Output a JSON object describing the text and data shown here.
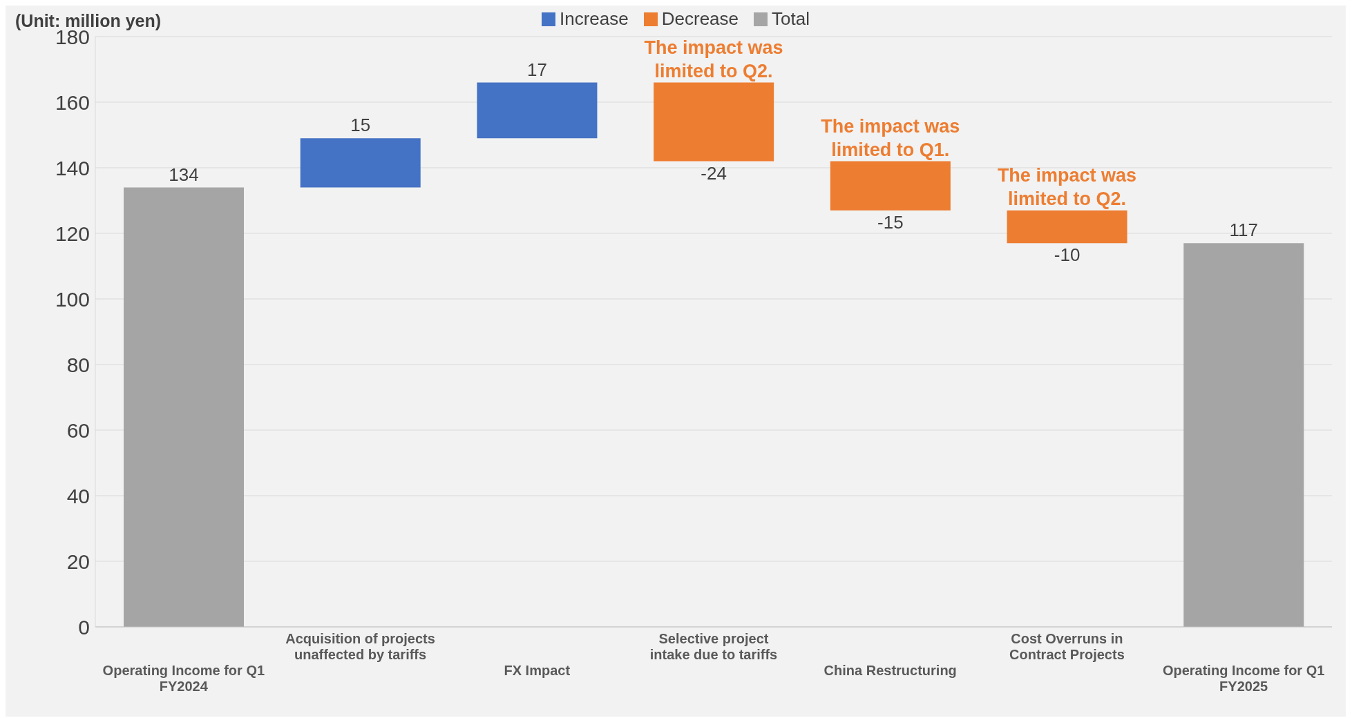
{
  "chart_data": {
    "type": "bar",
    "ylabel": "(Unit: million yen)",
    "categories": [
      "Operating Income for Q1 FY2024",
      "Acquisition of projects unaffected by tariffs",
      "FX Impact",
      "Selective project intake due to tariffs",
      "China Restructuring",
      "Cost Overruns in Contract Projects",
      "Operating Income for Q1 FY2025"
    ],
    "series": [
      {
        "name": "Increase",
        "color": "#4472c4",
        "values": [
          null,
          15,
          17,
          null,
          null,
          null,
          null
        ],
        "base": [
          null,
          134,
          149,
          null,
          null,
          null,
          null
        ]
      },
      {
        "name": "Decrease",
        "color": "#ed7d31",
        "values": [
          null,
          null,
          null,
          -24,
          -15,
          -10,
          null
        ],
        "base": [
          null,
          null,
          null,
          166,
          142,
          127,
          null
        ]
      },
      {
        "name": "Total",
        "color": "#a5a5a5",
        "values": [
          134,
          null,
          null,
          null,
          null,
          null,
          117
        ],
        "base": [
          0,
          null,
          null,
          null,
          null,
          null,
          0
        ]
      }
    ],
    "ylim": [
      0,
      180
    ],
    "yticks": [
      0,
      20,
      40,
      60,
      80,
      100,
      120,
      140,
      160,
      180
    ],
    "grid": "y",
    "legend": "top",
    "data_labels": true,
    "annotations": [
      {
        "text": "The impact was limited to Q2.",
        "x": "Selective project intake due to tariffs",
        "y": 166
      },
      {
        "text": "The impact was limited to Q1.",
        "x": "China Restructuring",
        "y": 142
      },
      {
        "text": "The impact was limited to Q2.",
        "x": "Cost Overruns in Contract Projects",
        "y": 127
      }
    ]
  }
}
